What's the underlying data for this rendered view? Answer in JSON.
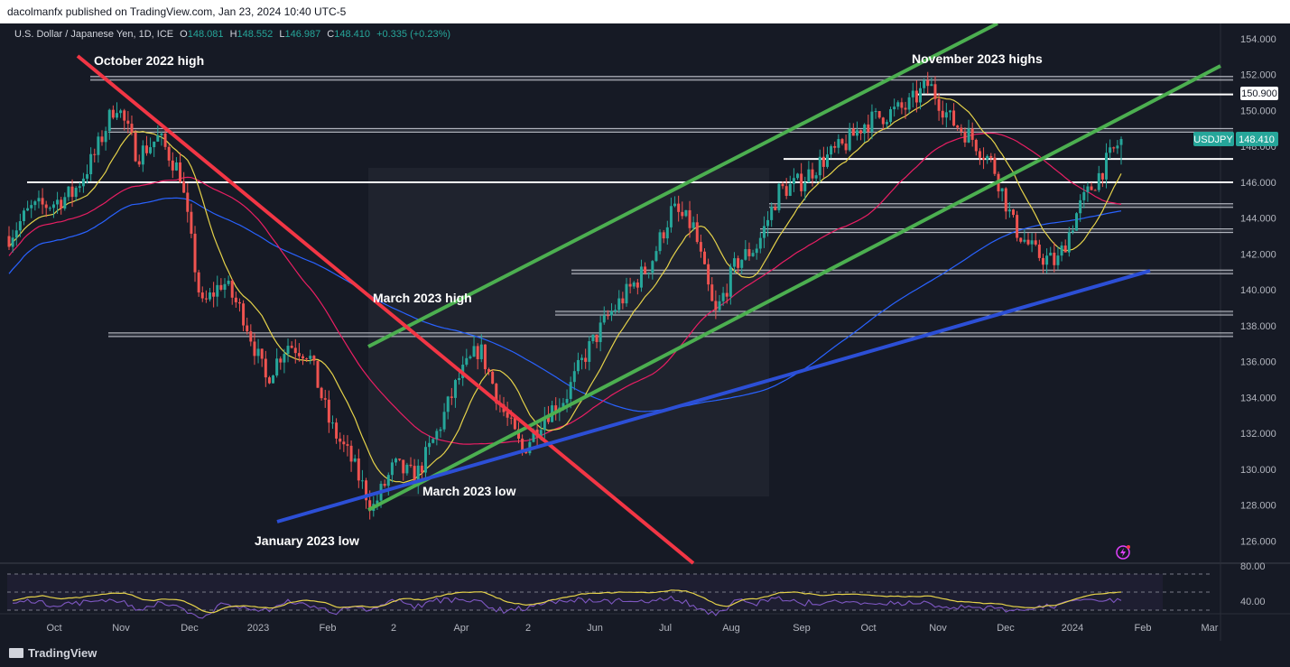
{
  "header": {
    "publisher": "dacolmanfx published on TradingView.com, Jan 23, 2024 10:40 UTC-5"
  },
  "legend": {
    "symbol_info": "U.S. Dollar / Japanese Yen, 1D, ICE",
    "o_label": "O",
    "o_value": "148.081",
    "h_label": "H",
    "h_value": "148.552",
    "l_label": "L",
    "l_value": "146.987",
    "c_label": "C",
    "c_value": "148.410",
    "change": "+0.335 (+0.23%)"
  },
  "price_axis": {
    "ticks": [
      "154.000",
      "152.000",
      "150.000",
      "148.000",
      "146.000",
      "144.000",
      "142.000",
      "140.000",
      "138.000",
      "136.000",
      "134.000",
      "132.000",
      "130.000",
      "128.000",
      "126.000"
    ],
    "highlight_level": "150.900",
    "current_symbol": "USDJPY",
    "current_price": "148.410"
  },
  "rsi_axis": {
    "ticks": [
      "80.00",
      "40.00"
    ]
  },
  "time_axis": {
    "labels": [
      "Oct",
      "Nov",
      "Dec",
      "2023",
      "Feb",
      "2",
      "Apr",
      "2",
      "Jun",
      "Jul",
      "Aug",
      "Sep",
      "Oct",
      "Nov",
      "Dec",
      "2024",
      "Feb",
      "Mar"
    ]
  },
  "annotations": {
    "oct2022_high": "October 2022 high",
    "nov2023_highs": "November 2023 highs",
    "mar2023_high": "March 2023 high",
    "mar2023_low": "March 2023 low",
    "jan2023_low": "January 2023 low"
  },
  "branding": {
    "logo_text": "TradingView"
  },
  "colors": {
    "background": "#161a25",
    "up": "#26a69a",
    "down": "#ef5350",
    "channel": "#4caf50",
    "downtrend": "#f23645",
    "uptrend": "#2c4fd6",
    "ma_short": "#e5d24a",
    "ma_mid": "#e91e63",
    "ma_long": "#2962ff",
    "rsi": "#7e57c2"
  },
  "chart_data": {
    "type": "candlestick",
    "instrument": "USD/JPY",
    "timeframe": "1D",
    "ylim": [
      125,
      155
    ],
    "y_ticks": [
      126,
      128,
      130,
      132,
      134,
      136,
      138,
      140,
      142,
      144,
      146,
      148,
      150,
      152,
      154
    ],
    "x_labels": [
      "Oct",
      "Nov",
      "Dec",
      "2023",
      "Feb",
      "2",
      "Apr",
      "2",
      "Jun",
      "Jul",
      "Aug",
      "Sep",
      "Oct",
      "Nov",
      "Dec",
      "2024",
      "Feb",
      "Mar"
    ],
    "close_path": [
      {
        "t": "Sep 2022",
        "p": 143.0
      },
      {
        "t": "Sep 2022",
        "p": 144.5
      },
      {
        "t": "Oct 2022",
        "p": 144.8
      },
      {
        "t": "Oct 2022",
        "p": 145.4
      },
      {
        "t": "Oct 2022",
        "p": 147.5
      },
      {
        "t": "Oct 2022",
        "p": 150.5
      },
      {
        "t": "Oct 2022",
        "p": 147.5
      },
      {
        "t": "Nov 2022",
        "p": 148.5
      },
      {
        "t": "Nov 2022",
        "p": 146.5
      },
      {
        "t": "Nov 2022",
        "p": 139.0
      },
      {
        "t": "Nov 2022",
        "p": 140.5
      },
      {
        "t": "Nov 2022",
        "p": 138.5
      },
      {
        "t": "Dec 2022",
        "p": 135.0
      },
      {
        "t": "Dec 2022",
        "p": 137.0
      },
      {
        "t": "Dec 2022",
        "p": 136.5
      },
      {
        "t": "Dec 2022",
        "p": 132.5
      },
      {
        "t": "Jan 2023",
        "p": 130.5
      },
      {
        "t": "Jan 2023",
        "p": 127.8
      },
      {
        "t": "Jan 2023",
        "p": 130.2
      },
      {
        "t": "Feb 2023",
        "p": 129.5
      },
      {
        "t": "Feb 2023",
        "p": 132.0
      },
      {
        "t": "Feb 2023",
        "p": 135.0
      },
      {
        "t": "Mar 2023",
        "p": 136.8
      },
      {
        "t": "Mar 2023",
        "p": 133.5
      },
      {
        "t": "Mar 2023",
        "p": 131.0
      },
      {
        "t": "Apr 2023",
        "p": 133.0
      },
      {
        "t": "Apr 2023",
        "p": 134.0
      },
      {
        "t": "May 2023",
        "p": 136.5
      },
      {
        "t": "May 2023",
        "p": 138.5
      },
      {
        "t": "Jun 2023",
        "p": 140.0
      },
      {
        "t": "Jun 2023",
        "p": 141.5
      },
      {
        "t": "Jun 2023",
        "p": 144.5
      },
      {
        "t": "Jul 2023",
        "p": 143.5
      },
      {
        "t": "Jul 2023",
        "p": 138.5
      },
      {
        "t": "Jul 2023",
        "p": 141.5
      },
      {
        "t": "Aug 2023",
        "p": 142.5
      },
      {
        "t": "Aug 2023",
        "p": 145.5
      },
      {
        "t": "Aug 2023",
        "p": 146.0
      },
      {
        "t": "Sep 2023",
        "p": 147.2
      },
      {
        "t": "Sep 2023",
        "p": 148.0
      },
      {
        "t": "Oct 2023",
        "p": 149.3
      },
      {
        "t": "Oct 2023",
        "p": 149.8
      },
      {
        "t": "Oct 2023",
        "p": 150.2
      },
      {
        "t": "Nov 2023",
        "p": 151.5
      },
      {
        "t": "Nov 2023",
        "p": 149.5
      },
      {
        "t": "Nov 2023",
        "p": 148.5
      },
      {
        "t": "Dec 2023",
        "p": 147.0
      },
      {
        "t": "Dec 2023",
        "p": 143.5
      },
      {
        "t": "Dec 2023",
        "p": 142.0
      },
      {
        "t": "Dec 2023",
        "p": 141.5
      },
      {
        "t": "Jan 2024",
        "p": 144.5
      },
      {
        "t": "Jan 2024",
        "p": 146.5
      },
      {
        "t": "Jan 2024",
        "p": 148.41
      }
    ],
    "horizontal_levels": [
      151.8,
      148.9,
      147.3,
      146.0,
      144.7,
      143.3,
      141.0,
      138.7,
      137.5
    ],
    "key_level_label": 150.9,
    "last": {
      "open": 148.081,
      "high": 148.552,
      "low": 146.987,
      "close": 148.41,
      "change": 0.335,
      "change_pct": 0.23
    },
    "rsi": {
      "levels": [
        80,
        40
      ]
    }
  }
}
